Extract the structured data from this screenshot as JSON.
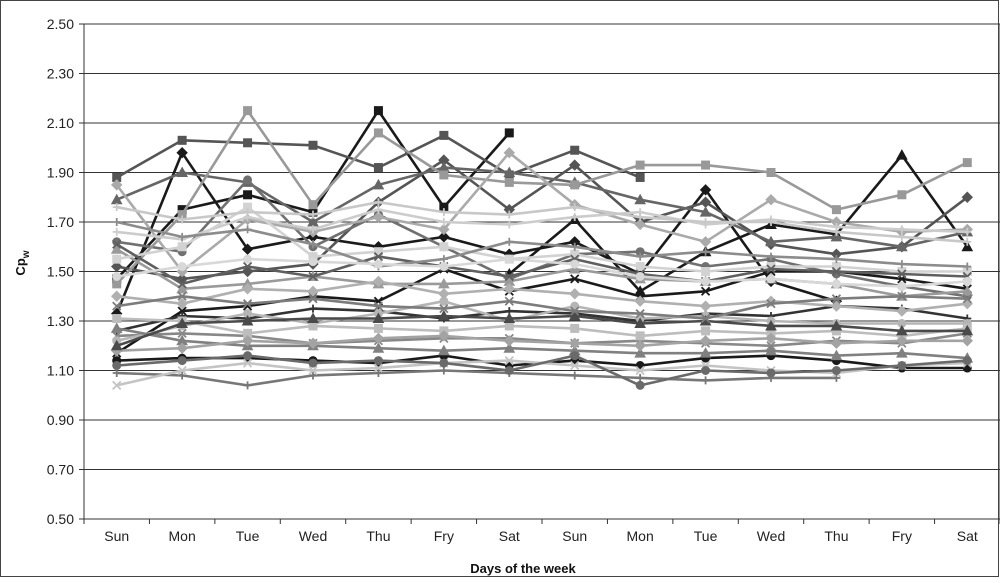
{
  "chart_data": {
    "type": "line",
    "title": "",
    "xlabel": "Days of the week",
    "ylabel": "Cp",
    "ylabel_subscript": "w",
    "ylim": [
      0.5,
      2.5
    ],
    "yticks": [
      "0.50",
      "0.70",
      "0.90",
      "1.10",
      "1.30",
      "1.50",
      "1.70",
      "1.90",
      "2.10",
      "2.30",
      "2.50"
    ],
    "categories": [
      "Sun",
      "Mon",
      "Tue",
      "Wed",
      "Thu",
      "Fry",
      "Sat",
      "Sun",
      "Mon",
      "Tue",
      "Wed",
      "Thu",
      "Fry",
      "Sat"
    ],
    "grid": "horizontal",
    "legend": "none",
    "series": [
      {
        "color": "#1a1a1a",
        "values": [
          1.47,
          1.75,
          1.81,
          1.74,
          2.15,
          1.76,
          2.06,
          null,
          null,
          null,
          null,
          null,
          null,
          null
        ]
      },
      {
        "color": "#1a1a1a",
        "values": [
          1.33,
          1.98,
          1.59,
          1.64,
          1.6,
          1.64,
          1.57,
          1.62,
          1.49,
          1.83,
          1.46,
          1.38,
          null,
          null
        ]
      },
      {
        "color": "#1a1a1a",
        "values": [
          null,
          null,
          null,
          null,
          null,
          null,
          1.49,
          1.71,
          1.42,
          1.58,
          1.69,
          1.65,
          1.97,
          1.6
        ]
      },
      {
        "color": "#1a1a1a",
        "values": [
          1.14,
          1.15,
          1.15,
          1.14,
          1.13,
          1.16,
          1.12,
          1.14,
          1.12,
          1.15,
          1.16,
          1.14,
          1.11,
          1.11
        ]
      },
      {
        "color": "#1a1a1a",
        "values": [
          1.17,
          1.34,
          1.36,
          1.4,
          1.38,
          1.51,
          1.42,
          1.47,
          1.4,
          1.42,
          1.5,
          1.5,
          1.47,
          1.43
        ]
      },
      {
        "color": "#333333",
        "values": [
          1.26,
          1.32,
          1.31,
          1.35,
          1.34,
          1.31,
          1.34,
          1.33,
          1.3,
          1.33,
          1.32,
          1.36,
          1.35,
          1.31
        ]
      },
      {
        "color": "#555555",
        "values": [
          1.88,
          2.03,
          2.02,
          2.01,
          1.92,
          2.05,
          1.89,
          1.99,
          1.88,
          null,
          null,
          null,
          null,
          null
        ]
      },
      {
        "color": "#555555",
        "values": [
          1.52,
          1.47,
          1.5,
          1.53,
          1.78,
          1.95,
          1.75,
          1.93,
          1.7,
          1.78,
          1.61,
          1.57,
          1.6,
          1.8
        ]
      },
      {
        "color": "#666666",
        "values": [
          1.79,
          1.9,
          1.86,
          1.7,
          1.85,
          1.92,
          1.9,
          1.86,
          1.79,
          1.74,
          1.62,
          1.64,
          1.6,
          1.66
        ]
      },
      {
        "color": "#707070",
        "values": [
          1.62,
          1.58,
          1.87,
          1.6,
          1.73,
          1.6,
          1.47,
          1.57,
          1.58,
          1.52,
          1.55,
          1.49,
          1.44,
          1.4
        ]
      },
      {
        "color": "#888888",
        "values": [
          1.24,
          1.25,
          1.24,
          1.21,
          1.22,
          1.23,
          1.23,
          1.21,
          1.22,
          1.21,
          1.2,
          1.22,
          1.21,
          1.25
        ]
      },
      {
        "color": "#777777",
        "values": [
          1.09,
          1.08,
          1.04,
          1.08,
          1.09,
          1.1,
          1.09,
          1.08,
          1.07,
          1.06,
          1.07,
          1.07,
          null,
          null
        ]
      },
      {
        "color": "#999999",
        "values": [
          1.45,
          1.73,
          2.15,
          1.77,
          2.06,
          1.89,
          1.86,
          1.85,
          1.93,
          1.93,
          1.9,
          1.75,
          1.81,
          1.94
        ]
      },
      {
        "color": "#aaaaaa",
        "values": [
          1.85,
          1.5,
          1.71,
          1.66,
          1.72,
          1.67,
          1.98,
          1.77,
          1.69,
          1.62,
          1.79,
          1.7,
          1.66,
          1.67
        ]
      },
      {
        "color": "#9a9a9a",
        "values": [
          1.59,
          1.43,
          1.45,
          1.48,
          1.45,
          1.45,
          1.46,
          1.51,
          1.47,
          1.46,
          1.47,
          1.45,
          1.4,
          1.42
        ]
      },
      {
        "color": "#b5b5b5",
        "values": [
          1.22,
          1.28,
          1.33,
          1.29,
          1.33,
          1.38,
          1.3,
          1.36,
          1.31,
          1.32,
          1.3,
          1.29,
          1.29,
          1.29
        ]
      },
      {
        "color": "#c4c4c4",
        "values": [
          1.04,
          1.1,
          1.13,
          1.1,
          1.11,
          1.13,
          1.14,
          1.12,
          1.1,
          1.12,
          1.1,
          1.09,
          1.12,
          1.13
        ]
      },
      {
        "color": "#cccccc",
        "values": [
          1.66,
          1.63,
          1.72,
          1.67,
          1.75,
          1.7,
          1.69,
          1.72,
          1.74,
          1.69,
          1.71,
          1.68,
          1.67,
          1.66
        ]
      },
      {
        "color": "#d2d2d2",
        "values": [
          1.55,
          1.6,
          1.76,
          1.56,
          1.58,
          1.6,
          1.55,
          1.57,
          1.52,
          1.5,
          1.52,
          1.52,
          1.5,
          1.5
        ]
      },
      {
        "color": "#b0b0b0",
        "values": [
          1.4,
          1.37,
          1.43,
          1.42,
          1.46,
          1.41,
          1.43,
          1.41,
          1.38,
          1.36,
          1.38,
          1.36,
          1.34,
          1.37
        ]
      },
      {
        "color": "#808080",
        "values": [
          1.27,
          1.22,
          1.2,
          1.2,
          1.19,
          1.18,
          1.19,
          1.18,
          1.17,
          1.17,
          1.18,
          1.16,
          1.17,
          1.15
        ]
      },
      {
        "color": "#6a6a6a",
        "values": [
          1.12,
          1.14,
          1.16,
          1.13,
          1.14,
          1.13,
          1.1,
          1.16,
          1.04,
          1.1,
          1.09,
          1.1,
          1.12,
          1.14
        ]
      },
      {
        "color": "#5f5f5f",
        "values": [
          1.61,
          1.45,
          1.52,
          1.48,
          1.56,
          1.52,
          1.48,
          1.55,
          1.49,
          1.46,
          1.51,
          1.5,
          1.49,
          1.48
        ]
      },
      {
        "color": "#8c8c8c",
        "values": [
          1.7,
          1.64,
          1.67,
          1.61,
          1.52,
          1.55,
          1.62,
          1.6,
          1.56,
          1.58,
          1.56,
          1.55,
          1.53,
          1.52
        ]
      },
      {
        "color": "#bdbdbd",
        "values": [
          1.31,
          1.3,
          1.25,
          1.28,
          1.27,
          1.26,
          1.28,
          1.27,
          1.24,
          1.26,
          1.25,
          1.26,
          1.24,
          1.27
        ]
      },
      {
        "color": "#a3a3a3",
        "values": [
          1.18,
          1.19,
          1.22,
          1.21,
          1.23,
          1.24,
          1.22,
          1.21,
          1.2,
          1.22,
          1.23,
          1.21,
          1.22,
          1.22
        ]
      },
      {
        "color": "#4a4a4a",
        "values": [
          1.2,
          1.29,
          1.3,
          1.31,
          1.31,
          1.32,
          1.31,
          1.32,
          1.29,
          1.3,
          1.28,
          1.28,
          1.26,
          1.26
        ]
      },
      {
        "color": "#d8d8d8",
        "values": [
          1.48,
          1.52,
          1.55,
          1.54,
          1.53,
          1.52,
          1.55,
          1.53,
          1.48,
          1.46,
          1.47,
          1.45,
          1.44,
          1.46
        ]
      },
      {
        "color": "#7c7c7c",
        "values": [
          1.36,
          1.4,
          1.37,
          1.39,
          1.36,
          1.35,
          1.38,
          1.34,
          1.33,
          1.31,
          1.37,
          1.39,
          1.4,
          1.39
        ]
      },
      {
        "color": "#c8c8c8",
        "values": [
          1.76,
          1.71,
          1.74,
          1.73,
          1.78,
          1.74,
          1.73,
          1.76,
          1.72,
          1.7,
          1.7,
          1.66,
          1.64,
          1.62
        ]
      }
    ]
  }
}
